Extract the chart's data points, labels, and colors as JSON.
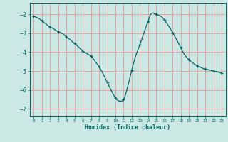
{
  "xlabel": "Humidex (Indice chaleur)",
  "background_color": "#cce8e4",
  "grid_color": "#e8a0a0",
  "line_color": "#006666",
  "marker_color": "#006666",
  "xlim": [
    -0.5,
    23.5
  ],
  "ylim": [
    -7.4,
    -1.4
  ],
  "yticks": [
    -7,
    -6,
    -5,
    -4,
    -3,
    -2
  ],
  "xticks": [
    0,
    1,
    2,
    3,
    4,
    5,
    6,
    7,
    8,
    9,
    10,
    11,
    12,
    13,
    14,
    15,
    16,
    17,
    18,
    19,
    20,
    21,
    22,
    23
  ],
  "x": [
    0,
    0.2,
    0.4,
    0.6,
    0.8,
    1.0,
    1.2,
    1.4,
    1.6,
    1.8,
    2.0,
    2.2,
    2.4,
    2.6,
    2.8,
    3.0,
    3.2,
    3.4,
    3.6,
    3.8,
    4.0,
    4.2,
    4.4,
    4.6,
    4.8,
    5.0,
    5.2,
    5.4,
    5.6,
    5.8,
    6.0,
    6.2,
    6.4,
    6.6,
    6.8,
    7.0,
    7.2,
    7.4,
    7.6,
    7.8,
    8.0,
    8.2,
    8.4,
    8.6,
    8.8,
    9.0,
    9.2,
    9.4,
    9.6,
    9.8,
    10.0,
    10.2,
    10.4,
    10.6,
    10.8,
    11.0,
    11.2,
    11.4,
    11.6,
    11.8,
    12.0,
    12.2,
    12.4,
    12.6,
    12.8,
    13.0,
    13.2,
    13.4,
    13.6,
    13.8,
    14.0,
    14.1,
    14.2,
    14.3,
    14.4,
    14.5,
    14.6,
    14.7,
    14.8,
    15.0,
    15.2,
    15.4,
    15.6,
    15.8,
    16.0,
    16.2,
    16.4,
    16.6,
    16.8,
    17.0,
    17.2,
    17.4,
    17.6,
    17.8,
    18.0,
    18.2,
    18.4,
    18.6,
    18.8,
    19.0,
    19.2,
    19.4,
    19.6,
    19.8,
    20.0,
    20.2,
    20.4,
    20.6,
    20.8,
    21.0,
    21.2,
    21.4,
    21.6,
    21.8,
    22.0,
    22.2,
    22.4,
    22.6,
    22.8,
    23.0
  ],
  "y": [
    -2.1,
    -2.14,
    -2.18,
    -2.22,
    -2.28,
    -2.35,
    -2.42,
    -2.48,
    -2.55,
    -2.62,
    -2.68,
    -2.72,
    -2.76,
    -2.82,
    -2.88,
    -2.92,
    -2.96,
    -3.0,
    -3.05,
    -3.12,
    -3.2,
    -3.26,
    -3.32,
    -3.4,
    -3.48,
    -3.55,
    -3.62,
    -3.7,
    -3.78,
    -3.86,
    -3.95,
    -4.0,
    -4.05,
    -4.1,
    -4.15,
    -4.2,
    -4.3,
    -4.42,
    -4.55,
    -4.65,
    -4.78,
    -4.92,
    -5.08,
    -5.25,
    -5.42,
    -5.6,
    -5.78,
    -5.95,
    -6.12,
    -6.28,
    -6.42,
    -6.52,
    -6.58,
    -6.6,
    -6.58,
    -6.5,
    -6.3,
    -6.0,
    -5.65,
    -5.3,
    -4.95,
    -4.62,
    -4.3,
    -4.05,
    -3.82,
    -3.6,
    -3.35,
    -3.1,
    -2.85,
    -2.6,
    -2.38,
    -2.25,
    -2.1,
    -2.0,
    -1.96,
    -1.94,
    -1.93,
    -1.95,
    -1.98,
    -2.0,
    -2.05,
    -2.08,
    -2.12,
    -2.2,
    -2.3,
    -2.42,
    -2.55,
    -2.68,
    -2.82,
    -2.98,
    -3.12,
    -3.28,
    -3.44,
    -3.6,
    -3.78,
    -3.95,
    -4.1,
    -4.22,
    -4.32,
    -4.4,
    -4.48,
    -4.55,
    -4.62,
    -4.68,
    -4.72,
    -4.76,
    -4.8,
    -4.84,
    -4.88,
    -4.9,
    -4.92,
    -4.94,
    -4.96,
    -4.98,
    -5.0,
    -5.02,
    -5.04,
    -5.06,
    -5.08,
    -5.1
  ],
  "marker_x": [
    0,
    1,
    2,
    3,
    4,
    5,
    6,
    7,
    8,
    9,
    10,
    11,
    12,
    13,
    14,
    15,
    16,
    17,
    18,
    19,
    20,
    21,
    22,
    23
  ],
  "marker_y": [
    -2.1,
    -2.35,
    -2.68,
    -2.92,
    -3.2,
    -3.55,
    -3.95,
    -4.2,
    -4.78,
    -5.6,
    -6.42,
    -6.5,
    -4.95,
    -3.6,
    -2.38,
    -2.0,
    -2.3,
    -2.98,
    -3.78,
    -4.4,
    -4.72,
    -4.9,
    -5.0,
    -5.1
  ]
}
